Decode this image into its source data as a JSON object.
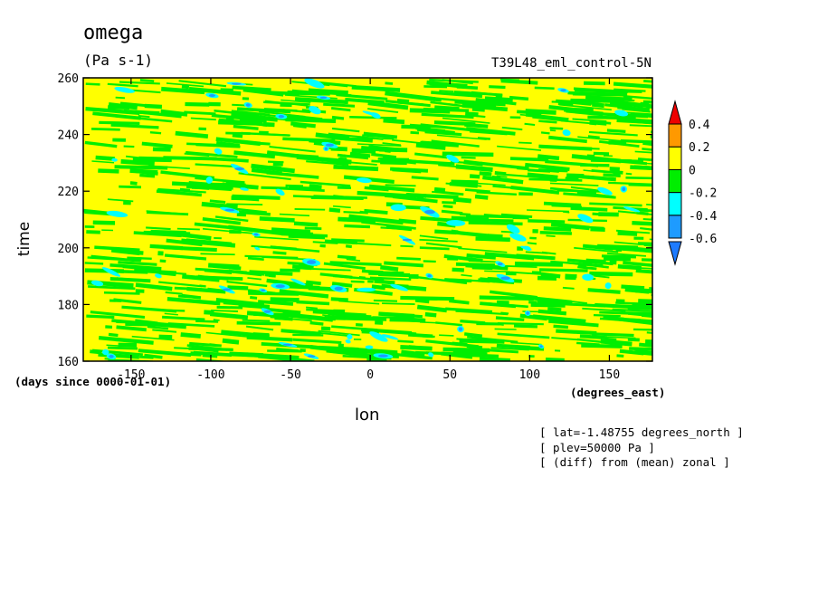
{
  "header": {
    "title": "omega",
    "units": "(Pa s-1)",
    "run_name": "T39L48_eml_control-5N"
  },
  "chart_data": {
    "type": "heatmap",
    "x_label": "lon",
    "x_units": "(degrees_east)",
    "y_label": "time",
    "y_units": "(days since 0000-01-01)",
    "x_range": [
      -180,
      177
    ],
    "y_range": [
      160,
      260
    ],
    "x_ticks": [
      -150,
      -100,
      -50,
      0,
      50,
      100,
      150
    ],
    "y_ticks": [
      160,
      180,
      200,
      220,
      240,
      260
    ],
    "colorbar": {
      "levels": [
        -0.6,
        -0.4,
        -0.2,
        0,
        0.2,
        0.4
      ],
      "labels": [
        "0.4",
        "0.2",
        "0",
        "-0.2",
        "-0.4",
        "-0.6"
      ],
      "colors": [
        "#1e7bff",
        "#1e9bff",
        "#00ffff",
        "#00ee00",
        "#ffff00",
        "#ff9900",
        "#ee0000"
      ],
      "extend": "both"
    },
    "colors": {
      "positive": "#ffff00",
      "weak_negative": "#00ee00",
      "negative": "#00ffff",
      "strong_negative": "#1e9bff",
      "very_strong_negative": "#1e7bff"
    }
  },
  "annotations": [
    "[ lat=-1.48755 degrees_north ]",
    "[ plev=50000 Pa ]",
    "[ (diff) from (mean) zonal ]"
  ]
}
